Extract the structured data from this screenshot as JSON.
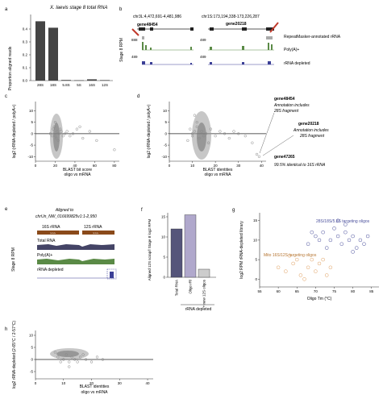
{
  "panel_letters": [
    "a",
    "b",
    "c",
    "d",
    "e",
    "f",
    "g",
    "h"
  ],
  "chart_data": [
    {
      "panel": "a",
      "type": "bar",
      "title": "X. laevis stage 8 total RNA",
      "ylabel": "Proportion aligned reads",
      "categories": [
        "28S",
        "18S",
        "5.8S",
        "5S",
        "16S",
        "12S"
      ],
      "values": [
        0.46,
        0.41,
        0.005,
        0.003,
        0.01,
        0.004
      ],
      "ylim": [
        0,
        0.5
      ],
      "yticks": [
        "0.0",
        "0.1",
        "0.2",
        "0.3",
        "0.4"
      ],
      "color": "#444444"
    },
    {
      "panel": "c",
      "type": "scatter",
      "xlabel": "BLAST bit score",
      "xlabel2": "oligo vs mRNA",
      "ylabel": "log2 (rRNA-depleted / polyA+)",
      "xticks": [
        "0",
        "20",
        "40",
        "60",
        "80"
      ],
      "xlim": [
        0,
        85
      ],
      "yticks": [
        "10",
        "5",
        "0",
        "-5",
        "-10"
      ],
      "ylim": [
        -12,
        14
      ],
      "points": [
        [
          18,
          2
        ],
        [
          20,
          -1
        ],
        [
          22,
          1
        ],
        [
          19,
          3
        ],
        [
          21,
          -2
        ],
        [
          24,
          0
        ],
        [
          25,
          2
        ],
        [
          23,
          -3
        ],
        [
          20,
          5
        ],
        [
          26,
          1
        ],
        [
          28,
          -1
        ],
        [
          30,
          0
        ],
        [
          32,
          1
        ],
        [
          35,
          -1
        ],
        [
          38,
          0
        ],
        [
          42,
          2
        ],
        [
          48,
          -2
        ],
        [
          80,
          -7
        ],
        [
          62,
          -3
        ],
        [
          15,
          0
        ],
        [
          17,
          -1
        ],
        [
          45,
          3
        ],
        [
          55,
          1
        ]
      ]
    },
    {
      "panel": "d",
      "type": "scatter",
      "xlabel": "BLAST identities",
      "xlabel2": "oligo vs mRNA",
      "ylabel": "log2 (rRNA-depleted / polyA+)",
      "xticks": [
        "0",
        "10",
        "20",
        "30",
        "40"
      ],
      "xlim": [
        0,
        42
      ],
      "yticks": [
        "10",
        "5",
        "0",
        "-5",
        "-10"
      ],
      "ylim": [
        -12,
        14
      ],
      "points": [
        [
          9,
          2
        ],
        [
          10,
          -1
        ],
        [
          11,
          1
        ],
        [
          12,
          3
        ],
        [
          13,
          -2
        ],
        [
          10,
          0
        ],
        [
          14,
          1
        ],
        [
          15,
          -1
        ],
        [
          16,
          0
        ],
        [
          18,
          2
        ],
        [
          20,
          -1
        ],
        [
          22,
          1
        ],
        [
          24,
          0
        ],
        [
          26,
          -2
        ],
        [
          28,
          1
        ],
        [
          8,
          -3
        ],
        [
          12,
          5
        ],
        [
          17,
          -4
        ],
        [
          30,
          0
        ],
        [
          33,
          -1
        ],
        [
          36,
          -4
        ],
        [
          38,
          -9
        ],
        [
          39,
          -10
        ],
        [
          11,
          8
        ]
      ],
      "annotations": [
        {
          "gene": "gene48454",
          "note1": "Annotation includes",
          "note2": "28S fragment"
        },
        {
          "gene": "gene20218",
          "note1": "Annotation includes",
          "note2": "28S fragment"
        },
        {
          "gene": "gene47265",
          "note1": "99.5% identical to 16S rRNA",
          "note2": ""
        }
      ]
    },
    {
      "panel": "f",
      "type": "bar",
      "ylabel": "Aligned 12S scrap/l Stage 8 log2 RPM",
      "categories": [
        "Total RNA",
        "Oligo rRl",
        "+ new 12S oligos"
      ],
      "values": [
        12,
        15.5,
        2
      ],
      "colors": [
        "#55557a",
        "#b0a8cc",
        "#cccccc"
      ],
      "group_label": "rRNA depleted",
      "ylim": [
        0,
        16
      ],
      "yticks": [
        "0",
        "5",
        "10",
        "15"
      ]
    },
    {
      "panel": "g",
      "type": "scatter",
      "xlabel": "Oligo Tm (°C)",
      "ylabel": "log2 RPM rRNA-depleted library",
      "xticks": [
        "55",
        "60",
        "65",
        "70",
        "75",
        "80",
        "85"
      ],
      "xlim": [
        55,
        87
      ],
      "yticks": [
        "15",
        "10",
        "5",
        "0"
      ],
      "ylim": [
        -2,
        17
      ],
      "series": [
        {
          "name": "28S/18S/5.8S targeting oligos",
          "color": "#4a4f9c",
          "points": [
            [
              68,
              9
            ],
            [
              70,
              11
            ],
            [
              72,
              12
            ],
            [
              74,
              10
            ],
            [
              75,
              13
            ],
            [
              76,
              11
            ],
            [
              77,
              9
            ],
            [
              78,
              12
            ],
            [
              79,
              10
            ],
            [
              80,
              11
            ],
            [
              81,
              8
            ],
            [
              82,
              10
            ],
            [
              83,
              9
            ],
            [
              73,
              8
            ],
            [
              71,
              10
            ],
            [
              69,
              12
            ],
            [
              84,
              11
            ],
            [
              78,
              14
            ],
            [
              76,
              15
            ],
            [
              80,
              7
            ]
          ]
        },
        {
          "name": "Mito 16S/12S targeting oligos",
          "color": "#e0a060",
          "points": [
            [
              60,
              3
            ],
            [
              62,
              2
            ],
            [
              64,
              4
            ],
            [
              66,
              1
            ],
            [
              68,
              3
            ],
            [
              70,
              2
            ],
            [
              72,
              5
            ],
            [
              74,
              3
            ],
            [
              65,
              5
            ],
            [
              67,
              0
            ],
            [
              71,
              4
            ],
            [
              73,
              1
            ],
            [
              63,
              6
            ],
            [
              69,
              5
            ]
          ]
        }
      ]
    },
    {
      "panel": "h",
      "type": "scatter",
      "xlabel": "BLAST identities",
      "xlabel2": "oligo vs mRNA",
      "ylabel": "log2 rRNA-depleted (2-65°C / 2-57°C)",
      "xticks": [
        "0",
        "10",
        "20",
        "30",
        "40"
      ],
      "xlim": [
        0,
        42
      ],
      "yticks": [
        "10",
        "5",
        "0",
        "-5"
      ],
      "ylim": [
        -8,
        12
      ],
      "points": [
        [
          8,
          1
        ],
        [
          9,
          -1
        ],
        [
          10,
          0
        ],
        [
          11,
          2
        ],
        [
          12,
          -1
        ],
        [
          13,
          1
        ],
        [
          14,
          0
        ],
        [
          15,
          -1
        ],
        [
          16,
          1
        ],
        [
          18,
          0
        ],
        [
          20,
          -1
        ],
        [
          22,
          1
        ],
        [
          24,
          0
        ],
        [
          7,
          3
        ],
        [
          12,
          -3
        ],
        [
          17,
          2
        ]
      ]
    }
  ],
  "panel_b": {
    "coord1": "chr3L:4,472,691-4,481,986",
    "coord2": "chr1S:173,194,338-173,226,287",
    "gene1": "gene48454",
    "gene2": "gene20218",
    "ylabel": "Stage 8 RPM",
    "scale1": [
      "888",
      "489"
    ],
    "scale2": [
      "489",
      "489"
    ],
    "tracks": [
      "RepeatMasker-annotated rRNA",
      "Poly(A)+",
      "rRNA depleted"
    ]
  },
  "panel_e": {
    "title": "Aligned to",
    "subtitle": "chrUn_NW_016699825v1:1-2,950",
    "rrna_labels": [
      "16S rRNA",
      "12S rRNA"
    ],
    "tracks": [
      "Total RNA",
      "Poly(A)+",
      "rRNA depleted"
    ],
    "ylabel": "Stage 8 RPM"
  },
  "colors": {
    "total": "#444466",
    "polya": "#5a8a46",
    "depleted": "#3b3f96",
    "highlight": "#c0392b"
  }
}
